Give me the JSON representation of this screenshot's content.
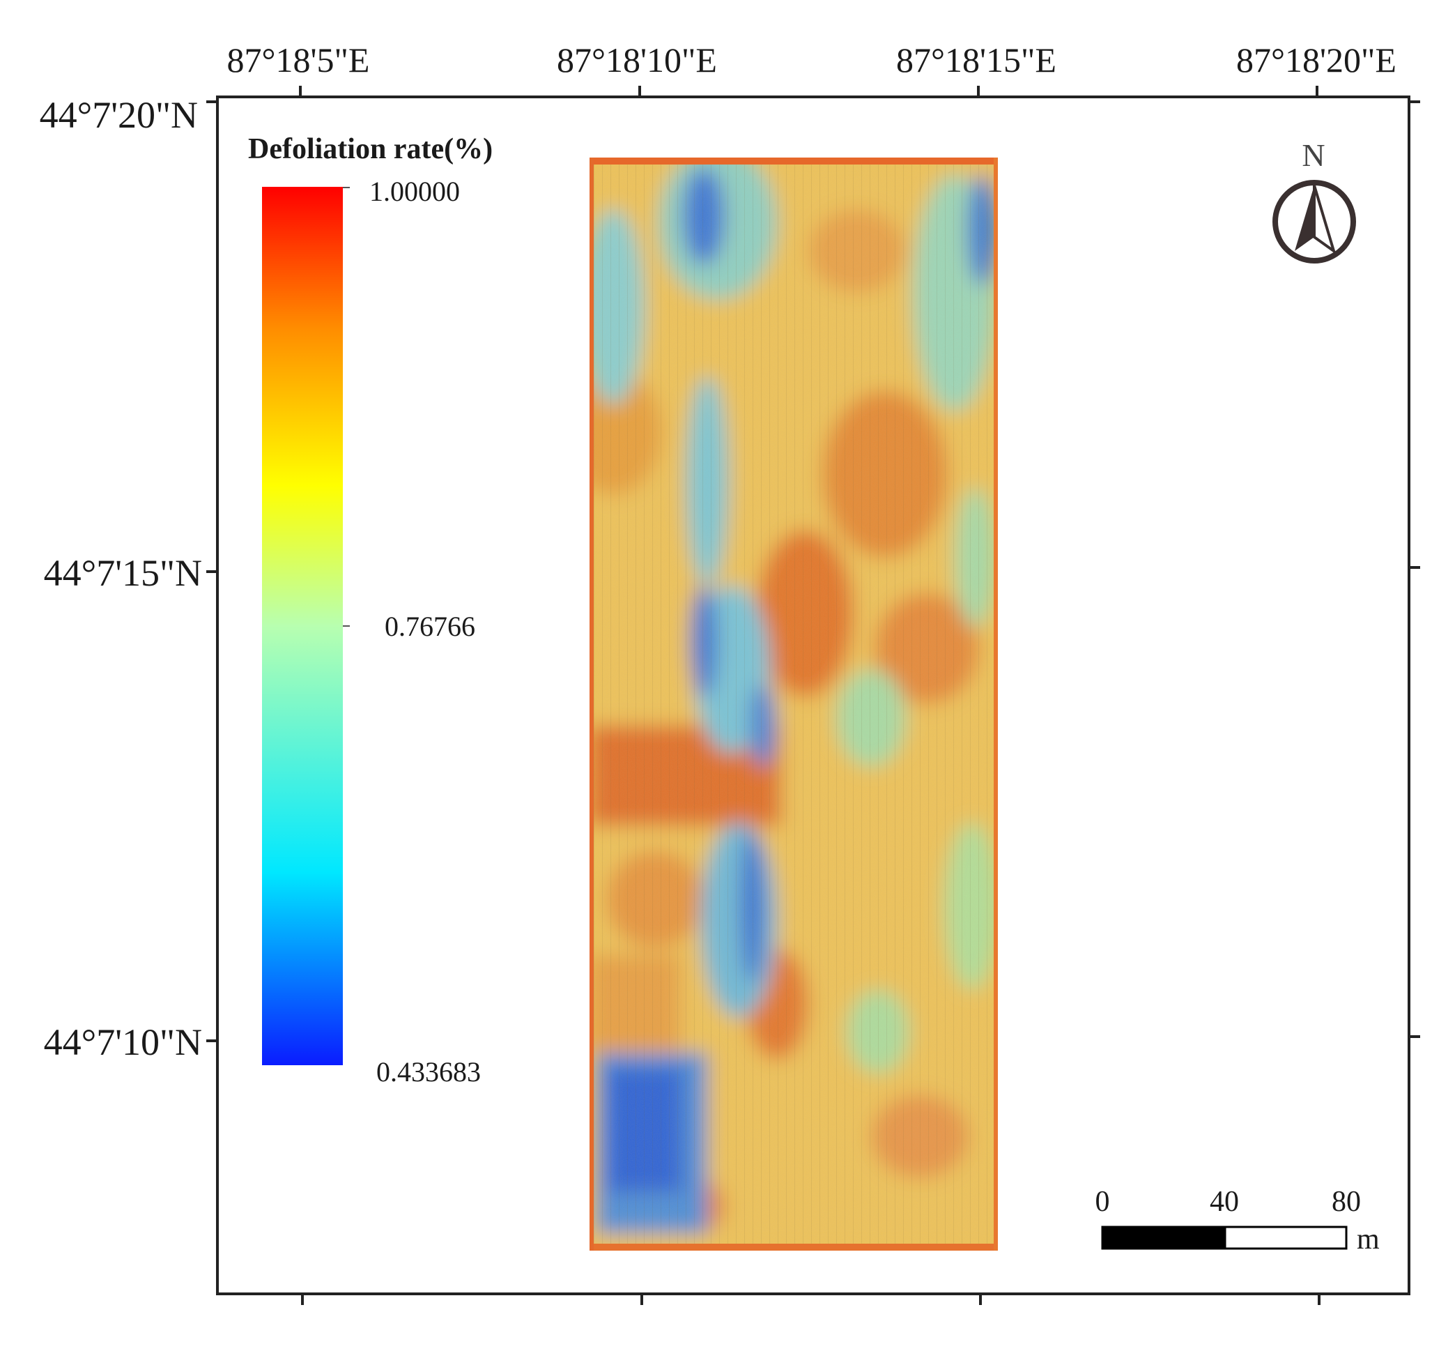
{
  "map": {
    "lon_ticks": [
      "87°18'5\"E",
      "87°18'10\"E",
      "87°18'15\"E",
      "87°18'20\"E"
    ],
    "lat_ticks": [
      "44°7'20\"N",
      "44°7'15\"N",
      "44°7'10\"N"
    ]
  },
  "legend": {
    "title": "Defoliation rate(%)",
    "max_label": "1.00000",
    "mid_label": "0.76766",
    "min_label": "0.433683",
    "max_value": 1.0,
    "mid_value": 0.76766,
    "min_value": 0.433683,
    "color_stops": [
      "#0000ff",
      "#00ffff",
      "#ccff99",
      "#ffff00",
      "#ff9900",
      "#ff0000"
    ]
  },
  "north_arrow": {
    "label": "N",
    "icon": "north-arrow-icon"
  },
  "scale_bar": {
    "labels": [
      "0",
      "40",
      "80"
    ],
    "unit": "m"
  },
  "raster": {
    "description_icon": "defoliation-raster",
    "palette": {
      "high": "#e8762a",
      "mid": "#f1c65a",
      "low_green": "#b9e08c",
      "low_cyan": "#7dcdd9",
      "low_blue": "#2a6ad6"
    }
  }
}
